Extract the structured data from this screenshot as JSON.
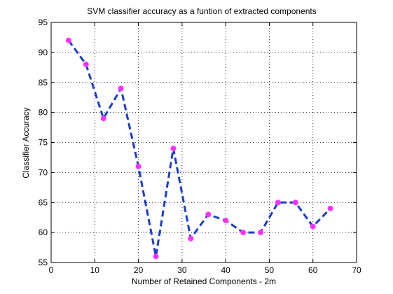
{
  "chart_data": {
    "type": "line",
    "title": "SVM classifier accuracy as a funtion of extracted components",
    "xlabel": "Number of Retained Components - 2m",
    "ylabel": "Classifier Accuracy",
    "xlim": [
      0,
      70
    ],
    "ylim": [
      55,
      95
    ],
    "xticks": [
      0,
      10,
      20,
      30,
      40,
      50,
      60,
      70
    ],
    "yticks": [
      55,
      60,
      65,
      70,
      75,
      80,
      85,
      90,
      95
    ],
    "grid": true,
    "series": [
      {
        "x": [
          4,
          8,
          12,
          16,
          20,
          24,
          28,
          32,
          36,
          40,
          44,
          48,
          52,
          56,
          60,
          64
        ],
        "y": [
          92,
          88,
          79,
          84,
          71,
          56,
          74,
          59,
          63,
          62,
          60,
          60,
          65,
          65,
          61,
          64
        ],
        "line_color": "#1a3ccc",
        "line_style": "dashed",
        "marker_color": "#ff33ff"
      }
    ]
  }
}
